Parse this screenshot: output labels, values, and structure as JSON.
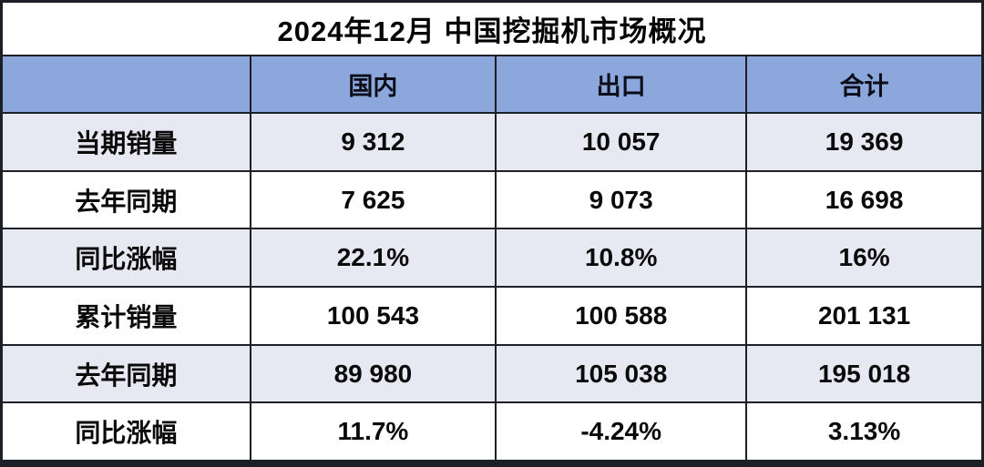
{
  "title": "2024年12月 中国挖掘机市场概况",
  "colors": {
    "header_bg": "#8CA7DC",
    "band_bg": "#E7E8F2",
    "border": "#1d1f26",
    "title_text": "#050505",
    "cell_text": "#0a0a0a"
  },
  "table": {
    "header": [
      "",
      "国内",
      "出口",
      "合计"
    ],
    "rows": [
      {
        "label": "当期销量",
        "domestic": "9 312",
        "export": "10 057",
        "total": "19 369"
      },
      {
        "label": "去年同期",
        "domestic": "7 625",
        "export": "9 073",
        "total": "16 698"
      },
      {
        "label": "同比涨幅",
        "domestic": "22.1%",
        "export": "10.8%",
        "total": "16%"
      },
      {
        "label": "累计销量",
        "domestic": "100 543",
        "export": "100 588",
        "total": "201 131"
      },
      {
        "label": "去年同期",
        "domestic": "89 980",
        "export": "105 038",
        "total": "195 018"
      },
      {
        "label": "同比涨幅",
        "domestic": "11.7%",
        "export": "-4.24%",
        "total": "3.13%"
      }
    ]
  },
  "chart_data": {
    "type": "table",
    "title": "2024年12月 中国挖掘机市场概况",
    "columns": [
      "国内",
      "出口",
      "合计"
    ],
    "row_labels": [
      "当期销量",
      "去年同期",
      "同比涨幅",
      "累计销量",
      "去年同期",
      "同比涨幅"
    ],
    "values": [
      [
        9312,
        10057,
        19369
      ],
      [
        7625,
        9073,
        16698
      ],
      [
        "22.1%",
        "10.8%",
        "16%"
      ],
      [
        100543,
        100588,
        201131
      ],
      [
        89980,
        105038,
        195018
      ],
      [
        "11.7%",
        "-4.24%",
        "3.13%"
      ]
    ],
    "notes": "Numbers displayed with space thousands separator; banded rows 1,3,5 use lavender background; header band periwinkle blue"
  }
}
